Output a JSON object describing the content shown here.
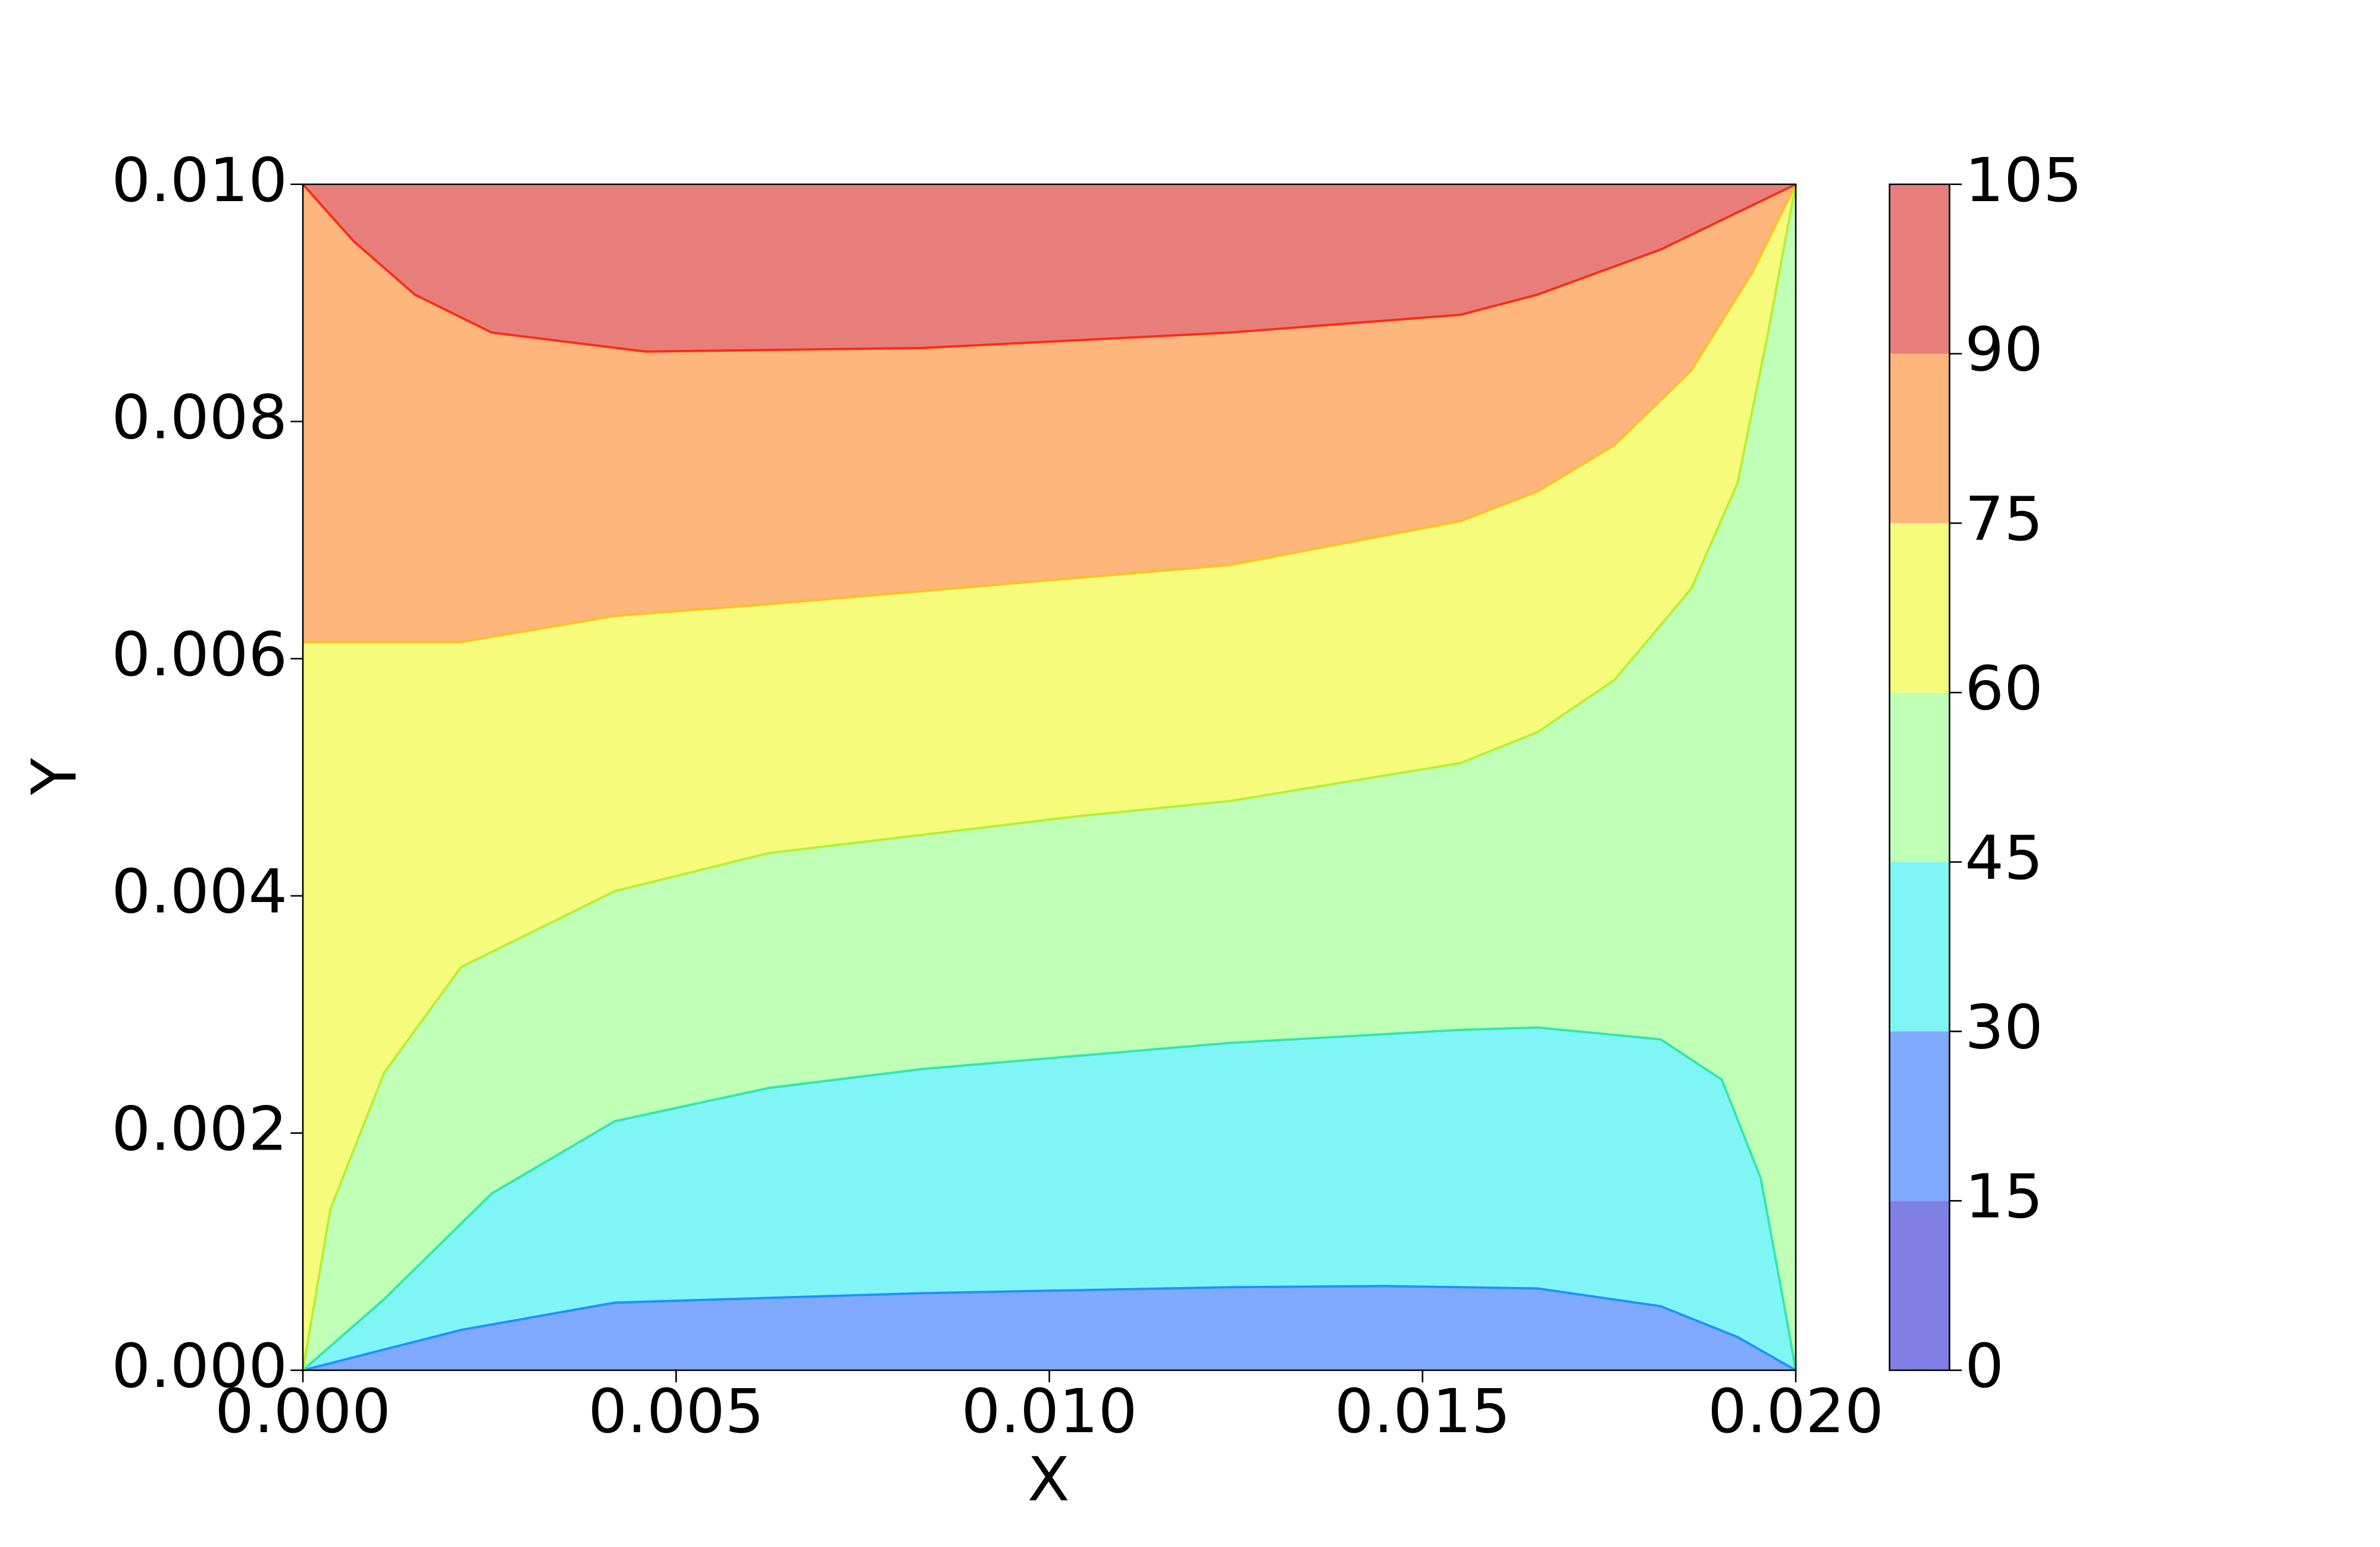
{
  "chart_data": {
    "type": "contour",
    "xlabel": "X",
    "ylabel": "Y",
    "xlim": [
      0,
      0.02
    ],
    "ylim": [
      0,
      0.01
    ],
    "xticks": [
      {
        "value": 0,
        "label": "0.000"
      },
      {
        "value": 0.005,
        "label": "0.005"
      },
      {
        "value": 0.01,
        "label": "0.010"
      },
      {
        "value": 0.015,
        "label": "0.015"
      },
      {
        "value": 0.02,
        "label": "0.020"
      }
    ],
    "yticks": [
      {
        "value": 0,
        "label": "0.000"
      },
      {
        "value": 0.002,
        "label": "0.002"
      },
      {
        "value": 0.004,
        "label": "0.004"
      },
      {
        "value": 0.006,
        "label": "0.006"
      },
      {
        "value": 0.008,
        "label": "0.008"
      },
      {
        "value": 0.01,
        "label": "0.010"
      }
    ],
    "levels": [
      0,
      15,
      30,
      45,
      60,
      75,
      90,
      105
    ],
    "colors": [
      "#7f7fe6",
      "#80aaff",
      "#80f5f5",
      "#bfffb6",
      "#f7fb7c",
      "#ffb67d",
      "#e87e7c"
    ],
    "contours": [
      {
        "level": 30,
        "color": "#1e90ff",
        "x": [
          0,
          0.00212,
          0.00418,
          0.0083,
          0.01242,
          0.01448,
          0.01654,
          0.01819,
          0.01922,
          0.02
        ],
        "y": [
          0,
          0.00034,
          0.00057,
          0.00065,
          0.0007,
          0.00071,
          0.00069,
          0.00054,
          0.00028,
          0
        ]
      },
      {
        "level": 45,
        "color": "#30e6b0",
        "x": [
          0,
          0.00109,
          0.00253,
          0.00418,
          0.00624,
          0.0083,
          0.01242,
          0.01551,
          0.01654,
          0.01819,
          0.01901,
          0.01953,
          0.01983,
          0.02
        ],
        "y": [
          0,
          0.0006,
          0.00149,
          0.0021,
          0.00238,
          0.00254,
          0.00276,
          0.00287,
          0.00289,
          0.00279,
          0.00245,
          0.00162,
          0.0006,
          0
        ]
      },
      {
        "level": 60,
        "color": "#b4f030",
        "x": [
          0,
          0.00037,
          0.00109,
          0.00212,
          0.00418,
          0.00624,
          0.01036,
          0.01242,
          0.01551,
          0.01654,
          0.01757,
          0.0186,
          0.01922,
          0.01963,
          0.02
        ],
        "y": [
          0,
          0.00136,
          0.00251,
          0.0034,
          0.00404,
          0.00436,
          0.00467,
          0.0048,
          0.00512,
          0.00538,
          0.00582,
          0.00659,
          0.00748,
          0.00875,
          0.01
        ]
      },
      {
        "level": 75,
        "color": "#ffc020",
        "x": [
          0,
          0.00212,
          0.00418,
          0.00624,
          0.01036,
          0.01242,
          0.01551,
          0.01654,
          0.01757,
          0.0186,
          0.01942,
          0.02
        ],
        "y": [
          0.00614,
          0.00614,
          0.00636,
          0.00646,
          0.00668,
          0.00679,
          0.00716,
          0.00741,
          0.0078,
          0.00843,
          0.00926,
          0.01
        ]
      },
      {
        "level": 90,
        "color": "#ff2a10",
        "x": [
          0,
          0.00068,
          0.0015,
          0.00253,
          0.00459,
          0.0083,
          0.01242,
          0.01551,
          0.01654,
          0.01819,
          0.02
        ],
        "y": [
          0.01,
          0.00952,
          0.00907,
          0.00875,
          0.00859,
          0.00862,
          0.00875,
          0.0089,
          0.00907,
          0.00945,
          0.01
        ]
      }
    ]
  }
}
